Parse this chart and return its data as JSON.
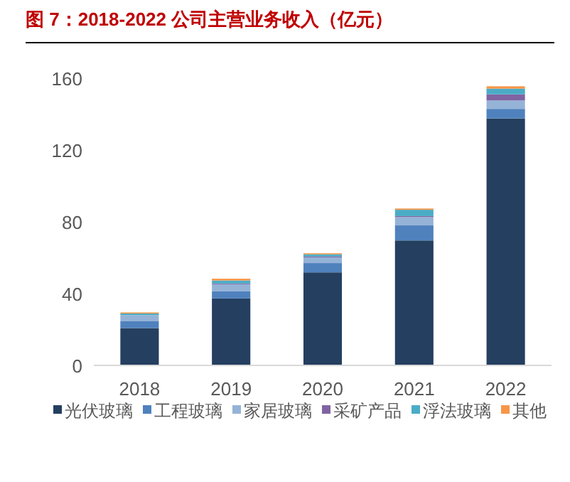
{
  "chart_data": {
    "type": "bar",
    "stacked": true,
    "title": "图 7：2018-2022 公司主营业务收入（亿元）",
    "categories": [
      "2018",
      "2019",
      "2020",
      "2021",
      "2022"
    ],
    "series": [
      {
        "name": "光伏玻璃",
        "color": "#243f60",
        "values": [
          20.8,
          37.3,
          51.8,
          69.6,
          137.6
        ]
      },
      {
        "name": "工程玻璃",
        "color": "#4f81bd",
        "values": [
          4.0,
          3.9,
          5.2,
          8.4,
          5.3
        ]
      },
      {
        "name": "家居玻璃",
        "color": "#95b3d7",
        "values": [
          3.2,
          4.0,
          3.2,
          4.7,
          4.7
        ]
      },
      {
        "name": "采矿产品",
        "color": "#8064a2",
        "values": [
          null,
          0.4,
          0.5,
          0.5,
          3.4
        ]
      },
      {
        "name": "浮法玻璃",
        "color": "#4bacc6",
        "values": [
          0.9,
          1.7,
          1.2,
          3.5,
          3.2
        ]
      },
      {
        "name": "其他",
        "color": "#f79646",
        "values": [
          0.6,
          1.0,
          0.6,
          0.7,
          1.3
        ]
      }
    ],
    "ylim": [
      0,
      160
    ],
    "yticks": [
      0,
      40,
      80,
      120,
      160
    ],
    "grid": false,
    "legend": "bottom"
  }
}
